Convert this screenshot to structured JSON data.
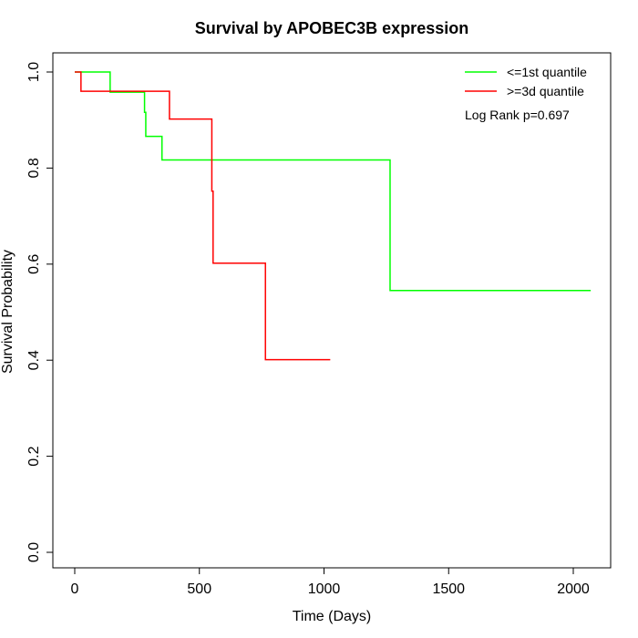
{
  "chart_data": {
    "type": "line",
    "title": "Survival by APOBEC3B expression",
    "xlabel": "Time (Days)",
    "ylabel": "Survival Probability",
    "xlim": [
      0,
      2070
    ],
    "ylim": [
      0,
      1
    ],
    "x_ticks": [
      0,
      500,
      1000,
      1500,
      2000
    ],
    "y_ticks": [
      0.0,
      0.2,
      0.4,
      0.6,
      0.8,
      1.0
    ],
    "x_tick_labels": [
      "0",
      "500",
      "1000",
      "1500",
      "2000"
    ],
    "y_tick_labels": [
      "0.0",
      "0.2",
      "0.4",
      "0.6",
      "0.8",
      "1.0"
    ],
    "grid": false,
    "legend_position": "top-right",
    "annotation": "Log Rank p=0.697",
    "series": [
      {
        "name": "<=1st quantile",
        "color": "#00ff00",
        "steps": [
          {
            "x": 0,
            "y": 1.0
          },
          {
            "x": 142,
            "y": 0.958
          },
          {
            "x": 280,
            "y": 0.916
          },
          {
            "x": 285,
            "y": 0.866
          },
          {
            "x": 350,
            "y": 0.817
          },
          {
            "x": 1265,
            "y": 0.545
          },
          {
            "x": 2070,
            "y": 0.545
          }
        ]
      },
      {
        "name": ">=3d quantile",
        "color": "#ff0000",
        "steps": [
          {
            "x": 0,
            "y": 1.0
          },
          {
            "x": 25,
            "y": 0.96
          },
          {
            "x": 380,
            "y": 0.902
          },
          {
            "x": 550,
            "y": 0.752
          },
          {
            "x": 555,
            "y": 0.602
          },
          {
            "x": 765,
            "y": 0.401
          },
          {
            "x": 1025,
            "y": 0.401
          }
        ]
      }
    ]
  }
}
